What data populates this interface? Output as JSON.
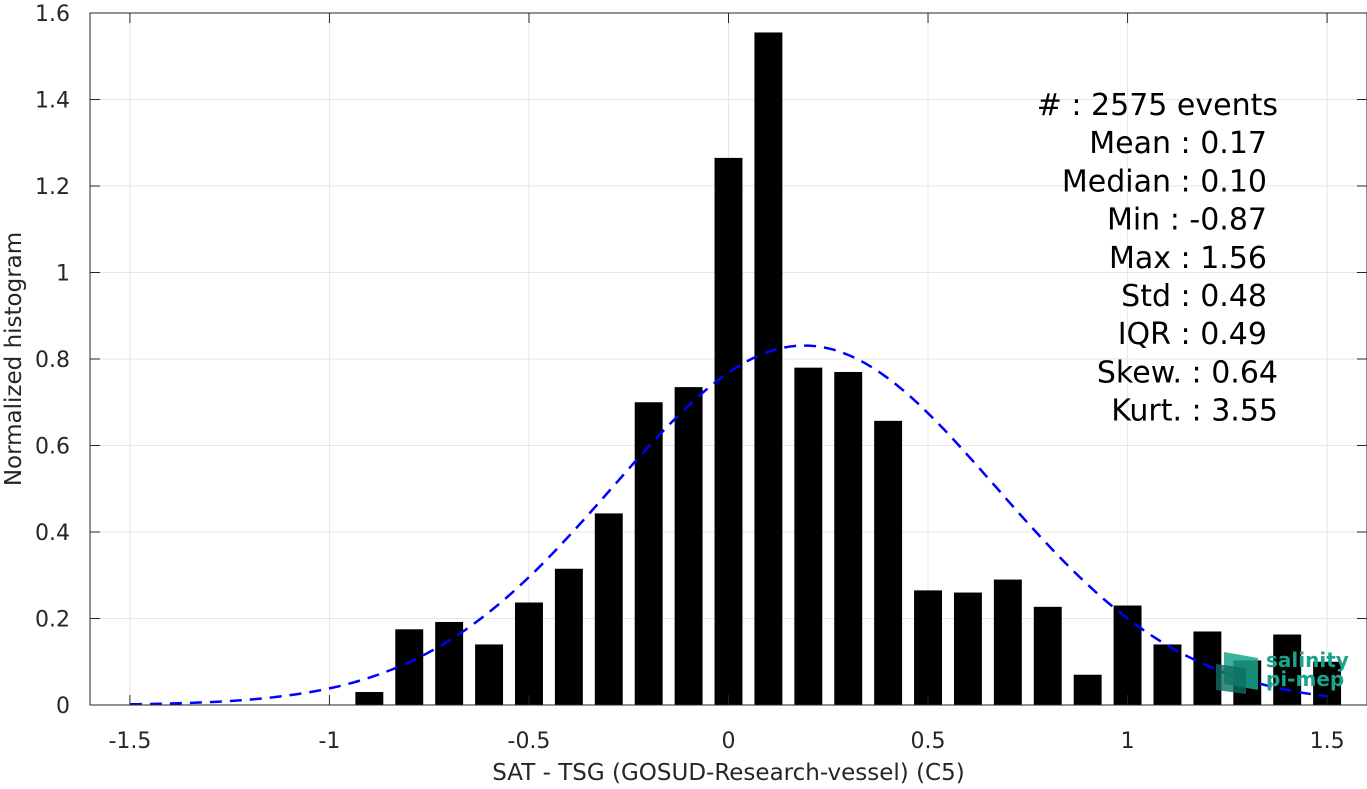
{
  "chart_data": {
    "type": "bar",
    "xlabel": "SAT - TSG (GOSUD-Research-vessel) (C5)",
    "ylabel": "Normalized histogram",
    "xlim": [
      -1.6,
      1.6
    ],
    "ylim": [
      0,
      1.6
    ],
    "x_ticks": [
      -1.5,
      -1,
      -0.5,
      0,
      0.5,
      1,
      1.5
    ],
    "x_tick_labels": [
      "-1.5",
      "-1",
      "-0.5",
      "0",
      "0.5",
      "1",
      "1.5"
    ],
    "y_ticks": [
      0,
      0.2,
      0.4,
      0.6,
      0.8,
      1,
      1.2,
      1.4,
      1.6
    ],
    "y_tick_labels": [
      "0",
      "0.2",
      "0.4",
      "0.6",
      "0.8",
      "1",
      "1.2",
      "1.4",
      "1.6"
    ],
    "grid": true,
    "bin_width": 0.1,
    "bar_color": "#000000",
    "bins": [
      {
        "x": -0.9,
        "value": 0.03
      },
      {
        "x": -0.8,
        "value": 0.175
      },
      {
        "x": -0.7,
        "value": 0.192
      },
      {
        "x": -0.6,
        "value": 0.14
      },
      {
        "x": -0.5,
        "value": 0.237
      },
      {
        "x": -0.4,
        "value": 0.315
      },
      {
        "x": -0.3,
        "value": 0.443
      },
      {
        "x": -0.2,
        "value": 0.7
      },
      {
        "x": -0.1,
        "value": 0.735
      },
      {
        "x": 0.0,
        "value": 1.265
      },
      {
        "x": 0.1,
        "value": 1.555
      },
      {
        "x": 0.2,
        "value": 0.78
      },
      {
        "x": 0.3,
        "value": 0.77
      },
      {
        "x": 0.4,
        "value": 0.657
      },
      {
        "x": 0.5,
        "value": 0.265
      },
      {
        "x": 0.6,
        "value": 0.26
      },
      {
        "x": 0.7,
        "value": 0.29
      },
      {
        "x": 0.8,
        "value": 0.227
      },
      {
        "x": 0.9,
        "value": 0.07
      },
      {
        "x": 1.0,
        "value": 0.23
      },
      {
        "x": 1.1,
        "value": 0.14
      },
      {
        "x": 1.2,
        "value": 0.17
      },
      {
        "x": 1.3,
        "value": 0.103
      },
      {
        "x": 1.4,
        "value": 0.163
      },
      {
        "x": 1.5,
        "value": 0.1
      }
    ],
    "fit_curve": {
      "type": "gaussian",
      "mean": 0.19,
      "std": 0.48,
      "x_range": [
        -1.5,
        1.5
      ],
      "color": "#0000ff",
      "style": "dashed"
    },
    "stats": [
      {
        "label": "#  : 2575 events"
      },
      {
        "label": "Mean : 0.17"
      },
      {
        "label": "Median : 0.10"
      },
      {
        "label": "Min : -0.87"
      },
      {
        "label": "Max : 1.56"
      },
      {
        "label": "Std : 0.48"
      },
      {
        "label": "IQR : 0.49"
      },
      {
        "label": "Skew. : 0.64"
      },
      {
        "label": "Kurt. : 3.55"
      }
    ],
    "stats_placement": "top-right"
  },
  "logo": {
    "line1": "salinity",
    "line2": "pi-mep",
    "color": "#1aa38a"
  }
}
